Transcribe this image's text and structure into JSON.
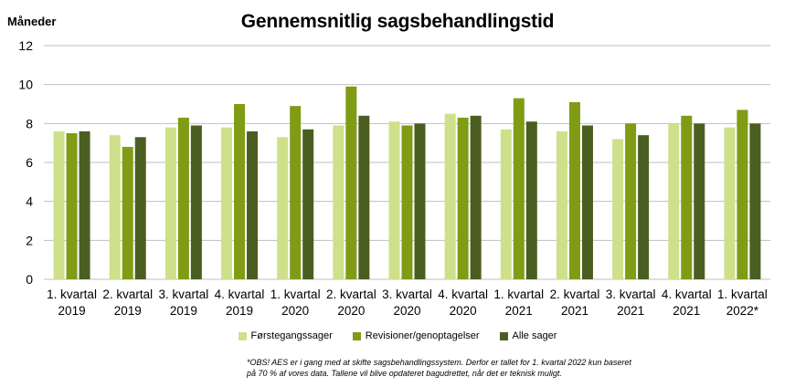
{
  "chart_data": {
    "type": "bar",
    "title": "Gennemsnitlig sagsbehandlingstid",
    "ylabel": "Måneder",
    "xlabel": "",
    "ylim": [
      0,
      12
    ],
    "yticks": [
      0,
      2,
      4,
      6,
      8,
      10,
      12
    ],
    "grid": true,
    "legend_position": "bottom",
    "categories": [
      [
        "1. kvartal",
        "2019"
      ],
      [
        "2. kvartal",
        "2019"
      ],
      [
        "3. kvartal",
        "2019"
      ],
      [
        "4. kvartal",
        "2019"
      ],
      [
        "1. kvartal",
        "2020"
      ],
      [
        "2. kvartal",
        "2020"
      ],
      [
        "3. kvartal",
        "2020"
      ],
      [
        "4. kvartal",
        "2020"
      ],
      [
        "1. kvartal",
        "2021"
      ],
      [
        "2. kvartal",
        "2021"
      ],
      [
        "3. kvartal",
        "2021"
      ],
      [
        "4. kvartal",
        "2021"
      ],
      [
        "1. kvartal",
        "2022*"
      ]
    ],
    "series": [
      {
        "name": "Førstegangssager",
        "color": "#cfe08a",
        "values": [
          7.6,
          7.4,
          7.8,
          7.8,
          7.3,
          7.9,
          8.1,
          8.5,
          7.7,
          7.6,
          7.2,
          8.0,
          7.8
        ]
      },
      {
        "name": "Revisioner/genoptagelser",
        "color": "#7f9c14",
        "values": [
          7.5,
          6.8,
          8.3,
          9.0,
          8.9,
          9.9,
          7.9,
          8.3,
          9.3,
          9.1,
          8.0,
          8.4,
          8.7
        ]
      },
      {
        "name": "Alle sager",
        "color": "#4a5e22",
        "values": [
          7.6,
          7.3,
          7.9,
          7.6,
          7.7,
          8.4,
          8.0,
          8.4,
          8.1,
          7.9,
          7.4,
          8.0,
          8.0
        ]
      }
    ],
    "footnote": "*OBS! AES er i gang med at skifte sagsbehandlingssystem. Derfor er tallet for 1. kvartal 2022 kun baseret på 70 % af vores data. Tallene vil blive opdateret bagudrettet, når det er teknisk muligt."
  }
}
